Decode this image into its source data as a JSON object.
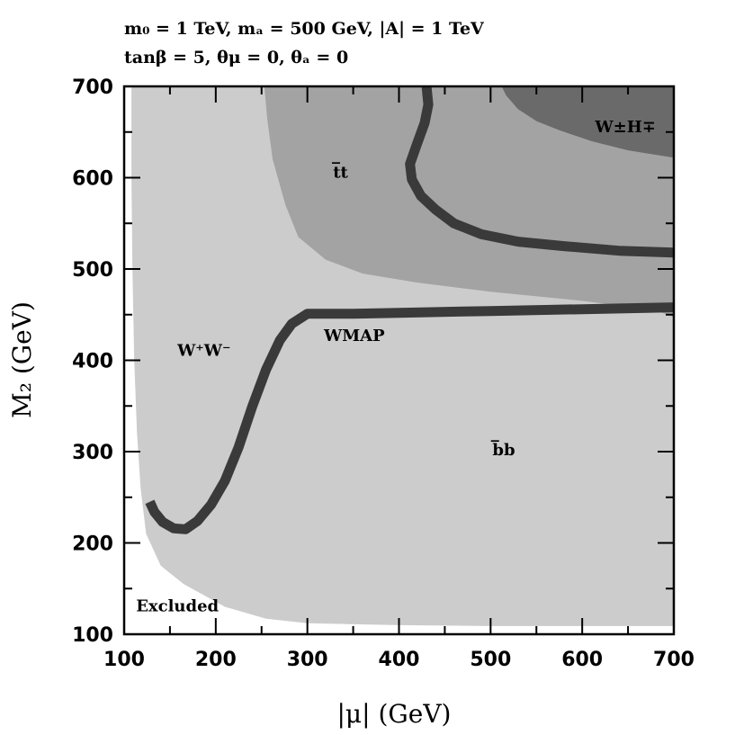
{
  "chart_data": {
    "type": "area",
    "title_line1": "m₀ = 1 TeV,  mₐ = 500 GeV,  |A| = 1 TeV",
    "title_line2": "tanβ = 5,  θμ = 0,  θₐ = 0",
    "xlabel": "|μ|   (GeV)",
    "ylabel": "M₂   (GeV)",
    "xlim": [
      100,
      700
    ],
    "ylim": [
      100,
      700
    ],
    "xticks": [
      "100",
      "200",
      "300",
      "400",
      "500",
      "600",
      "700"
    ],
    "yticks": [
      "100",
      "200",
      "300",
      "400",
      "500",
      "600",
      "700"
    ],
    "regions": [
      {
        "name": "Excluded",
        "label": "Excluded",
        "label_at": [
          113,
          125
        ],
        "color": "#ffffff",
        "polygon": []
      },
      {
        "name": "W+W-",
        "label": "W⁺W⁻",
        "label_at": [
          158,
          405
        ],
        "color": "#e8e8e8",
        "polygon": [
          [
            115,
            700
          ],
          [
            115,
            680
          ],
          [
            118,
            590
          ],
          [
            120,
            540
          ],
          [
            123,
            480
          ],
          [
            126,
            420
          ],
          [
            128,
            370
          ],
          [
            130,
            325
          ],
          [
            133,
            285
          ],
          [
            137,
            250
          ],
          [
            143,
            226
          ],
          [
            153,
            214
          ],
          [
            168,
            212
          ],
          [
            190,
            213
          ],
          [
            240,
            215
          ],
          [
            263,
            222
          ],
          [
            268,
            240
          ],
          [
            271,
            300
          ],
          [
            270,
            400
          ],
          [
            268,
            500
          ],
          [
            265,
            560
          ],
          [
            262,
            620
          ],
          [
            258,
            660
          ],
          [
            255,
            700
          ]
        ]
      },
      {
        "name": "bb",
        "label": "b̅b",
        "label_at": [
          502,
          296
        ],
        "color": "#cccccc",
        "polygon": [
          [
            108,
            700
          ],
          [
            108,
            600
          ],
          [
            109,
            500
          ],
          [
            111,
            400
          ],
          [
            114,
            320
          ],
          [
            118,
            260
          ],
          [
            124,
            210
          ],
          [
            140,
            175
          ],
          [
            165,
            155
          ],
          [
            210,
            130
          ],
          [
            255,
            117
          ],
          [
            300,
            112
          ],
          [
            400,
            110
          ],
          [
            500,
            109
          ],
          [
            700,
            109
          ],
          [
            700,
            447
          ],
          [
            680,
            455
          ],
          [
            600,
            465
          ],
          [
            500,
            475
          ],
          [
            420,
            485
          ],
          [
            360,
            495
          ],
          [
            320,
            510
          ],
          [
            290,
            535
          ],
          [
            276,
            570
          ],
          [
            262,
            620
          ],
          [
            256,
            665
          ],
          [
            253,
            700
          ]
        ]
      },
      {
        "name": "tt",
        "label": "t̅t",
        "label_at": [
          328,
          600
        ],
        "color": "#a3a3a3",
        "polygon": [
          [
            253,
            700
          ],
          [
            256,
            665
          ],
          [
            262,
            620
          ],
          [
            276,
            570
          ],
          [
            290,
            535
          ],
          [
            320,
            510
          ],
          [
            360,
            495
          ],
          [
            420,
            485
          ],
          [
            500,
            475
          ],
          [
            600,
            465
          ],
          [
            680,
            455
          ],
          [
            700,
            447
          ],
          [
            700,
            700
          ]
        ]
      },
      {
        "name": "WH",
        "label": "W±H∓",
        "label_at": [
          614,
          650
        ],
        "color": "#6a6a6a",
        "polygon": [
          [
            512,
            700
          ],
          [
            517,
            690
          ],
          [
            530,
            675
          ],
          [
            550,
            662
          ],
          [
            575,
            652
          ],
          [
            610,
            640
          ],
          [
            650,
            630
          ],
          [
            700,
            622
          ],
          [
            700,
            700
          ]
        ]
      }
    ],
    "wmap_label": "WMAP",
    "wmap_label_at": [
      318,
      421
    ],
    "wmap_color": "#3a3a3a",
    "wmap_curves": [
      [
        [
          128,
          245
        ],
        [
          133,
          234
        ],
        [
          142,
          223
        ],
        [
          154,
          216
        ],
        [
          167,
          215
        ],
        [
          180,
          224
        ],
        [
          195,
          242
        ],
        [
          210,
          268
        ],
        [
          225,
          305
        ],
        [
          240,
          350
        ],
        [
          255,
          390
        ],
        [
          270,
          422
        ],
        [
          283,
          440
        ],
        [
          300,
          451
        ],
        [
          350,
          451
        ],
        [
          400,
          452
        ],
        [
          500,
          454
        ],
        [
          600,
          456
        ],
        [
          700,
          458
        ]
      ],
      [
        [
          430,
          700
        ],
        [
          432,
          680
        ],
        [
          428,
          660
        ],
        [
          419,
          635
        ],
        [
          412,
          615
        ],
        [
          414,
          598
        ],
        [
          424,
          580
        ],
        [
          440,
          565
        ],
        [
          460,
          550
        ],
        [
          490,
          538
        ],
        [
          530,
          530
        ],
        [
          580,
          525
        ],
        [
          640,
          520
        ],
        [
          700,
          518
        ]
      ]
    ]
  }
}
